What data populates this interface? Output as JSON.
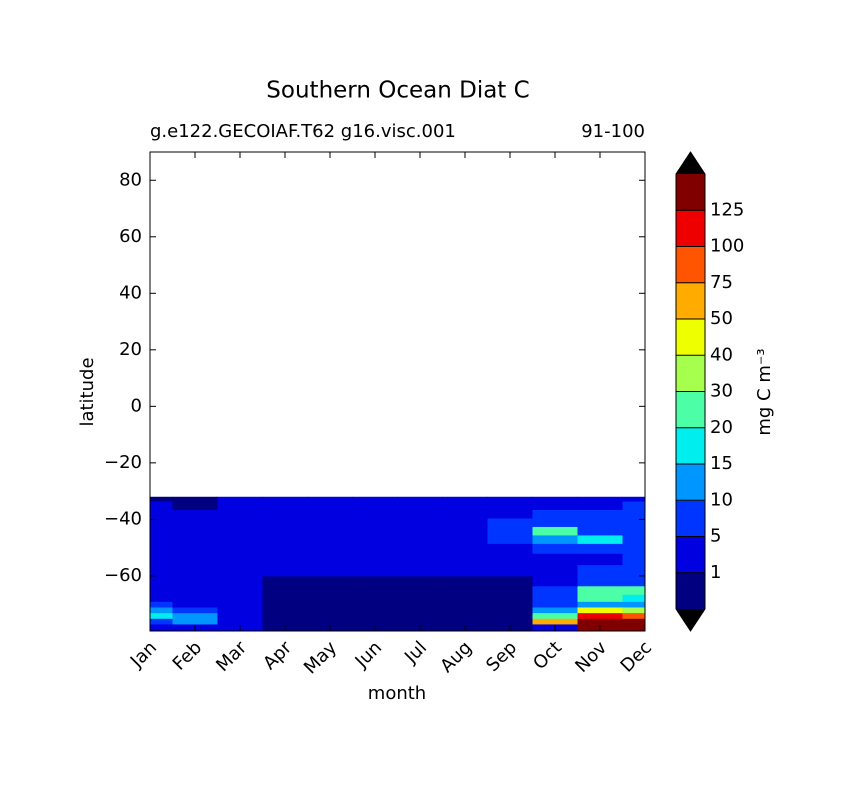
{
  "chart_data": {
    "type": "contour",
    "title": "Southern Ocean Diat C",
    "subtitle_left": "g.e122.GECOIAF.T62 g16.visc.001",
    "subtitle_right": "91-100",
    "x_label": "month",
    "y_label": "latitude",
    "categories": [
      "Jan",
      "Feb",
      "Mar",
      "Apr",
      "May",
      "Jun",
      "Jul",
      "Aug",
      "Sep",
      "Oct",
      "Nov",
      "Dec"
    ],
    "ylim": [
      -79.5,
      90
    ],
    "yticks": [
      {
        "value": -60,
        "label": "−60"
      },
      {
        "value": -40,
        "label": "−40"
      },
      {
        "value": -20,
        "label": "−20"
      },
      0,
      20,
      40,
      60,
      80
    ],
    "lat": [
      -78,
      -76,
      -74,
      -72,
      -70,
      -68,
      -65,
      -62,
      -58,
      -54,
      -50,
      -47,
      -44,
      -41,
      -38,
      -35,
      -32
    ],
    "z": [
      [
        3,
        3,
        2,
        0.5,
        0.5,
        0.5,
        0.5,
        0.5,
        0.5,
        3,
        140,
        140
      ],
      [
        8,
        10,
        3,
        0.5,
        0.5,
        0.5,
        0.5,
        0.5,
        0.5,
        50,
        140,
        140
      ],
      [
        18,
        12,
        4,
        0.5,
        0.5,
        0.5,
        0.5,
        0.5,
        0.5,
        20,
        100,
        80
      ],
      [
        12,
        8,
        3,
        0.5,
        0.5,
        0.5,
        0.5,
        0.5,
        0.5,
        10,
        40,
        30
      ],
      [
        6,
        4,
        2,
        0.5,
        0.5,
        0.5,
        0.5,
        0.5,
        0.5,
        8,
        12,
        12
      ],
      [
        3,
        2,
        2,
        0.5,
        0.5,
        0.5,
        0.5,
        0.5,
        0.5,
        6,
        25,
        18
      ],
      [
        2,
        2,
        2,
        0.5,
        0.5,
        0.5,
        0.5,
        0.5,
        0.5,
        5,
        25,
        20
      ],
      [
        2,
        2,
        2,
        0.8,
        0.8,
        0.6,
        0.6,
        0.8,
        0.8,
        3,
        8,
        8
      ],
      [
        2,
        2,
        2,
        2,
        2,
        2,
        2,
        2,
        2,
        3,
        6,
        6
      ],
      [
        2,
        2,
        2,
        2,
        2,
        2,
        2,
        2,
        3,
        4,
        4,
        6
      ],
      [
        2,
        2,
        2,
        2,
        2,
        2,
        2,
        2,
        4,
        6,
        8,
        6
      ],
      [
        2,
        2,
        2,
        2,
        2,
        2,
        2,
        3,
        7,
        12,
        16,
        6
      ],
      [
        2,
        2,
        2,
        2,
        2,
        2,
        2,
        3,
        8,
        22,
        9,
        6
      ],
      [
        2,
        2,
        2,
        2,
        2,
        2,
        2,
        3,
        7,
        8,
        7,
        6
      ],
      [
        2,
        2,
        2,
        2,
        2,
        2,
        2,
        2,
        4,
        6,
        6,
        6
      ],
      [
        2,
        0.8,
        2,
        2,
        2,
        2,
        2,
        2,
        3,
        4,
        4,
        6
      ],
      [
        0.8,
        0.8,
        2,
        2,
        2,
        2,
        2,
        2,
        2,
        3,
        3,
        3
      ]
    ],
    "colorbar": {
      "label": "mg C m⁻³",
      "ticks": [
        1,
        5,
        10,
        15,
        20,
        30,
        40,
        50,
        75,
        100,
        125
      ],
      "colors": [
        "#000080",
        "#0000e0",
        "#0034ff",
        "#0096ff",
        "#00eeee",
        "#4cffa6",
        "#a6ff4c",
        "#eeff00",
        "#ffab00",
        "#ff5500",
        "#ee0000",
        "#800000"
      ],
      "extend_color": "#000000"
    }
  }
}
